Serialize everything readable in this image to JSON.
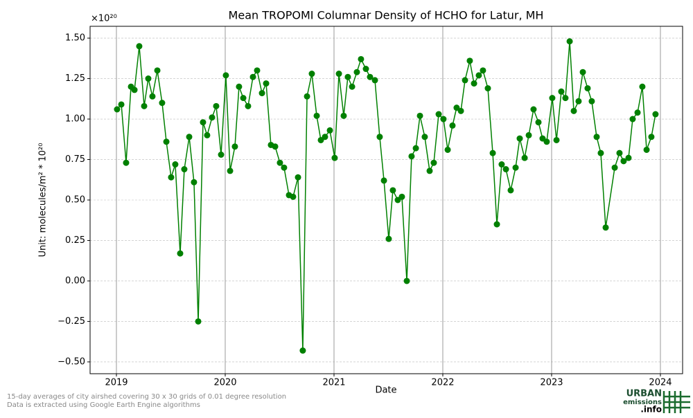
{
  "chart_data": {
    "type": "line",
    "title": "Mean TROPOMI Columnar Density of HCHO for Latur, MH",
    "y_offset_label": "×10²⁰",
    "xlabel": "Date",
    "ylabel": "Unit: molecules/m² * 10²⁰",
    "footnotes": [
      "15-day averages of city airshed covering 30 x 30 grids of 0.01 degree resolution",
      "Data is extracted using Google Earth Engine algorithms"
    ],
    "logo": [
      "URBAN",
      "emissions",
      ".info"
    ],
    "xlim": [
      2018.758,
      2024.204
    ],
    "ylim": [
      -0.573,
      1.573
    ],
    "xticks": [
      2019,
      2020,
      2021,
      2022,
      2023,
      2024
    ],
    "yticks": [
      {
        "value": 1.5,
        "label": "1.50"
      },
      {
        "value": 1.25,
        "label": "1.25"
      },
      {
        "value": 1.0,
        "label": "1.00"
      },
      {
        "value": 0.75,
        "label": "0.75"
      },
      {
        "value": 0.5,
        "label": "0.50"
      },
      {
        "value": 0.25,
        "label": "0.25"
      },
      {
        "value": 0.0,
        "label": "0.00"
      },
      {
        "value": -0.25,
        "label": "−0.25"
      },
      {
        "value": -0.5,
        "label": "−0.50"
      }
    ],
    "grid": true,
    "series": [
      {
        "color": "#008000",
        "x": [
          2019.006,
          2019.045,
          2019.089,
          2019.134,
          2019.166,
          2019.21,
          2019.255,
          2019.293,
          2019.331,
          2019.376,
          2019.42,
          2019.459,
          2019.503,
          2019.541,
          2019.586,
          2019.624,
          2019.669,
          2019.713,
          2019.752,
          2019.796,
          2019.834,
          2019.879,
          2019.917,
          2019.962,
          2020.006,
          2020.045,
          2020.089,
          2020.127,
          2020.166,
          2020.21,
          2020.255,
          2020.293,
          2020.338,
          2020.376,
          2020.42,
          2020.459,
          2020.503,
          2020.541,
          2020.586,
          2020.624,
          2020.669,
          2020.713,
          2020.752,
          2020.796,
          2020.841,
          2020.879,
          2020.917,
          2020.962,
          2021.006,
          2021.045,
          2021.089,
          2021.127,
          2021.166,
          2021.21,
          2021.248,
          2021.293,
          2021.331,
          2021.376,
          2021.42,
          2021.459,
          2021.503,
          2021.541,
          2021.586,
          2021.624,
          2021.669,
          2021.713,
          2021.752,
          2021.79,
          2021.834,
          2021.879,
          2021.917,
          2021.962,
          2022.006,
          2022.045,
          2022.089,
          2022.127,
          2022.166,
          2022.204,
          2022.248,
          2022.287,
          2022.331,
          2022.369,
          2022.414,
          2022.459,
          2022.497,
          2022.541,
          2022.58,
          2022.624,
          2022.669,
          2022.707,
          2022.752,
          2022.79,
          2022.834,
          2022.879,
          2022.917,
          2022.955,
          2023.006,
          2023.045,
          2023.089,
          2023.127,
          2023.166,
          2023.204,
          2023.248,
          2023.287,
          2023.331,
          2023.369,
          2023.414,
          2023.452,
          2023.497,
          2023.58,
          2023.624,
          2023.662,
          2023.707,
          2023.745,
          2023.79,
          2023.834,
          2023.873,
          2023.917,
          2023.955
        ],
        "values": [
          1.06,
          1.09,
          0.73,
          1.2,
          1.18,
          1.45,
          1.08,
          1.25,
          1.14,
          1.3,
          1.1,
          0.86,
          0.64,
          0.72,
          0.17,
          0.69,
          0.89,
          0.61,
          -0.25,
          0.98,
          0.9,
          1.01,
          1.08,
          0.78,
          1.27,
          0.68,
          0.83,
          1.2,
          1.13,
          1.08,
          1.26,
          1.3,
          1.16,
          1.22,
          0.84,
          0.83,
          0.73,
          0.7,
          0.53,
          0.52,
          0.64,
          -0.43,
          1.14,
          1.28,
          1.02,
          0.87,
          0.89,
          0.93,
          0.76,
          1.28,
          1.02,
          1.26,
          1.2,
          1.29,
          1.37,
          1.31,
          1.26,
          1.24,
          0.89,
          0.62,
          0.26,
          0.56,
          0.5,
          0.52,
          0.0,
          0.77,
          0.82,
          1.02,
          0.89,
          0.68,
          0.73,
          1.03,
          1.0,
          0.81,
          0.96,
          1.07,
          1.05,
          1.24,
          1.36,
          1.22,
          1.27,
          1.3,
          1.19,
          0.79,
          0.35,
          0.72,
          0.69,
          0.56,
          0.7,
          0.88,
          0.76,
          0.9,
          1.06,
          0.98,
          0.88,
          0.86,
          1.13,
          0.87,
          1.17,
          1.13,
          1.48,
          1.05,
          1.11,
          1.29,
          1.19,
          1.11,
          0.89,
          0.79,
          0.33,
          0.7,
          0.79,
          0.74,
          0.76,
          1.0,
          1.04,
          1.2,
          0.81,
          0.89,
          1.03
        ]
      }
    ]
  }
}
